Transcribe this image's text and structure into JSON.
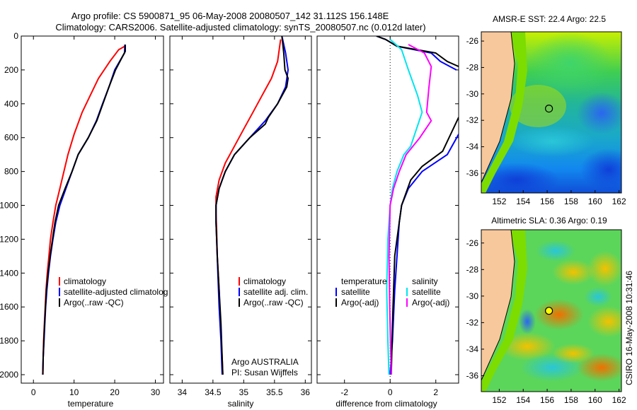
{
  "figure": {
    "title_line1": "Argo profile: CS 5900871_95 06-May-2008 20080507_142 31.112S 156.148E",
    "title_line2": "Climatology: CARS2006. Satellite-adjusted climatology: synTS_20080507.nc (0.012d later)",
    "credit": "CSIRO 16-May-2008 10:31:46"
  },
  "chart_data": [
    {
      "id": "temperature",
      "type": "line",
      "xlabel": "temperature",
      "ylabel": "",
      "xlim": [
        -3,
        32
      ],
      "ylim": [
        2050,
        0
      ],
      "xticks": [
        0,
        10,
        20,
        30
      ],
      "yticks": [
        0,
        200,
        400,
        600,
        800,
        1000,
        1200,
        1400,
        1600,
        1800,
        2000
      ],
      "legend": {
        "location": "lower-right",
        "entries": [
          "climatology",
          "satellite-adjusted climatolog",
          "Argo(..raw -QC)"
        ]
      },
      "series": [
        {
          "name": "climatology",
          "color": "#ff0000",
          "points": [
            [
              22.5,
              60
            ],
            [
              21,
              80
            ],
            [
              18.8,
              150
            ],
            [
              16,
              250
            ],
            [
              14,
              350
            ],
            [
              12,
              450
            ],
            [
              10,
              580
            ],
            [
              8.5,
              700
            ],
            [
              7.5,
              800
            ],
            [
              6.5,
              900
            ],
            [
              5.5,
              1000
            ],
            [
              4.8,
              1100
            ],
            [
              4.2,
              1200
            ],
            [
              3.8,
              1300
            ],
            [
              3.4,
              1400
            ],
            [
              3.1,
              1500
            ],
            [
              2.9,
              1600
            ],
            [
              2.7,
              1700
            ],
            [
              2.5,
              1800
            ],
            [
              2.4,
              1900
            ],
            [
              2.35,
              2000
            ]
          ]
        },
        {
          "name": "satellite-adjusted climatolog",
          "color": "#0000ff",
          "points": [
            [
              22.5,
              50
            ],
            [
              22.4,
              100
            ],
            [
              21.2,
              150
            ],
            [
              20,
              200
            ],
            [
              18.6,
              300
            ],
            [
              17,
              400
            ],
            [
              15.5,
              500
            ],
            [
              13.5,
              600
            ],
            [
              11,
              700
            ],
            [
              9.5,
              800
            ],
            [
              8,
              900
            ],
            [
              6.5,
              1000
            ],
            [
              5.5,
              1100
            ],
            [
              4.8,
              1200
            ],
            [
              4.2,
              1300
            ],
            [
              3.7,
              1400
            ],
            [
              3.3,
              1500
            ],
            [
              3.0,
              1600
            ],
            [
              2.8,
              1700
            ],
            [
              2.6,
              1800
            ],
            [
              2.4,
              1900
            ],
            [
              2.3,
              2000
            ]
          ]
        },
        {
          "name": "Argo(..raw -QC)",
          "color": "#000000",
          "points": [
            [
              22.6,
              50
            ],
            [
              22.6,
              90
            ],
            [
              21.5,
              140
            ],
            [
              20.2,
              200
            ],
            [
              18.6,
              300
            ],
            [
              17.1,
              400
            ],
            [
              15.6,
              500
            ],
            [
              13.5,
              600
            ],
            [
              11,
              700
            ],
            [
              9.5,
              800
            ],
            [
              7.8,
              900
            ],
            [
              6.2,
              1000
            ],
            [
              5.3,
              1100
            ],
            [
              4.7,
              1200
            ],
            [
              4.1,
              1300
            ],
            [
              3.6,
              1400
            ],
            [
              3.2,
              1500
            ],
            [
              2.95,
              1600
            ],
            [
              2.75,
              1700
            ],
            [
              2.55,
              1800
            ],
            [
              2.4,
              1900
            ],
            [
              2.3,
              2000
            ]
          ]
        }
      ]
    },
    {
      "id": "salinity",
      "type": "line",
      "xlabel": "salinity",
      "ylabel": "",
      "xlim": [
        33.8,
        36.1
      ],
      "ylim": [
        2050,
        0
      ],
      "xticks": [
        34,
        34.5,
        35,
        35.5,
        36
      ],
      "yticks": [
        0,
        200,
        400,
        600,
        800,
        1000,
        1200,
        1400,
        1600,
        1800,
        2000
      ],
      "legend": {
        "location": "lower-right",
        "entries": [
          "climatology",
          "satellite adj. clim.",
          "Argo(..raw -QC)"
        ]
      },
      "annotations": [
        "Argo AUSTRALIA",
        "PI: Susan Wijffels"
      ],
      "series": [
        {
          "name": "climatology",
          "color": "#ff0000",
          "points": [
            [
              35.6,
              20
            ],
            [
              35.55,
              150
            ],
            [
              35.45,
              250
            ],
            [
              35.3,
              350
            ],
            [
              35.15,
              450
            ],
            [
              35,
              550
            ],
            [
              34.85,
              650
            ],
            [
              34.7,
              750
            ],
            [
              34.6,
              850
            ],
            [
              34.55,
              950
            ],
            [
              34.55,
              1050
            ],
            [
              34.56,
              1150
            ],
            [
              34.57,
              1300
            ],
            [
              34.6,
              1500
            ],
            [
              34.62,
              1700
            ],
            [
              34.65,
              1900
            ],
            [
              34.66,
              2000
            ]
          ]
        },
        {
          "name": "satellite adj. clim.",
          "color": "#0000ff",
          "points": [
            [
              35.62,
              0
            ],
            [
              35.68,
              100
            ],
            [
              35.72,
              200
            ],
            [
              35.68,
              300
            ],
            [
              35.55,
              400
            ],
            [
              35.35,
              500
            ],
            [
              35.1,
              600
            ],
            [
              34.85,
              700
            ],
            [
              34.7,
              800
            ],
            [
              34.6,
              900
            ],
            [
              34.55,
              1000
            ],
            [
              34.55,
              1100
            ],
            [
              34.56,
              1200
            ],
            [
              34.58,
              1400
            ],
            [
              34.6,
              1600
            ],
            [
              34.63,
              1800
            ],
            [
              34.65,
              2000
            ]
          ]
        },
        {
          "name": "Argo(..raw -QC)",
          "color": "#000000",
          "points": [
            [
              35.62,
              0
            ],
            [
              35.65,
              100
            ],
            [
              35.67,
              200
            ],
            [
              35.72,
              250
            ],
            [
              35.7,
              300
            ],
            [
              35.55,
              400
            ],
            [
              35.4,
              480
            ],
            [
              35.35,
              520
            ],
            [
              35.1,
              600
            ],
            [
              34.85,
              700
            ],
            [
              34.7,
              800
            ],
            [
              34.6,
              900
            ],
            [
              34.55,
              1000
            ],
            [
              34.55,
              1100
            ],
            [
              34.57,
              1300
            ],
            [
              34.6,
              1500
            ],
            [
              34.63,
              1700
            ],
            [
              34.65,
              1900
            ],
            [
              34.66,
              2000
            ]
          ]
        }
      ]
    },
    {
      "id": "difference",
      "type": "line",
      "xlabel": "difference from climatology",
      "ylabel": "",
      "xlim": [
        -3.2,
        3.0
      ],
      "ylim": [
        2050,
        0
      ],
      "xticks": [
        -2,
        0,
        2
      ],
      "yticks": [
        0,
        200,
        400,
        600,
        800,
        1000,
        1200,
        1400,
        1600,
        1800,
        2000
      ],
      "legend": {
        "location": "lower-center",
        "entries": [
          "temperature",
          "satellite",
          "Argo(-adj)",
          "salinity",
          "satellite",
          "Argo(-adj)"
        ]
      },
      "series": [
        {
          "name": "temperature satellite",
          "color": "#0000ff",
          "points": [
            [
              -0.6,
              0
            ],
            [
              -0.2,
              20
            ],
            [
              0.3,
              60
            ],
            [
              1.8,
              100
            ],
            [
              2.2,
              150
            ],
            [
              2.9,
              200
            ]
          ]
        },
        {
          "name": "temperature satellite (deep)",
          "color": "#0000ff",
          "points": [
            [
              3.0,
              580
            ],
            [
              2.5,
              700
            ],
            [
              1.4,
              800
            ],
            [
              0.8,
              900
            ],
            [
              0.5,
              1000
            ],
            [
              0.4,
              1100
            ],
            [
              0.3,
              1300
            ],
            [
              0.2,
              1500
            ],
            [
              0.1,
              1800
            ],
            [
              0,
              2000
            ]
          ]
        },
        {
          "name": "temperature Argo(-adj)",
          "color": "#000000",
          "points": [
            [
              -0.6,
              0
            ],
            [
              -0.2,
              20
            ],
            [
              0.3,
              60
            ],
            [
              2.0,
              100
            ],
            [
              2.5,
              150
            ],
            [
              3.0,
              180
            ]
          ]
        },
        {
          "name": "temperature Argo(-adj) (deep)",
          "color": "#000000",
          "points": [
            [
              3.0,
              480
            ],
            [
              2.3,
              680
            ],
            [
              1.4,
              770
            ],
            [
              0.9,
              850
            ],
            [
              0.5,
              1000
            ],
            [
              0.4,
              1100
            ],
            [
              0.2,
              1300
            ],
            [
              0.1,
              1700
            ],
            [
              0.05,
              2000
            ]
          ]
        },
        {
          "name": "salinity satellite",
          "color": "#00e5ee",
          "points": [
            [
              0,
              20
            ],
            [
              0.5,
              80
            ],
            [
              0.8,
              200
            ],
            [
              1.2,
              350
            ],
            [
              1.4,
              450
            ],
            [
              0.9,
              650
            ],
            [
              0.6,
              700
            ],
            [
              0.3,
              800
            ],
            [
              0.1,
              900
            ],
            [
              0,
              1000
            ],
            [
              -0.1,
              1200
            ],
            [
              -0.15,
              1500
            ],
            [
              -0.1,
              1800
            ],
            [
              -0.05,
              2000
            ]
          ]
        },
        {
          "name": "salinity Argo(-adj)",
          "color": "#ff00ff",
          "points": [
            [
              0.8,
              50
            ],
            [
              1.5,
              100
            ],
            [
              1.8,
              180
            ],
            [
              1.7,
              300
            ],
            [
              1.6,
              450
            ],
            [
              1.8,
              500
            ],
            [
              1.3,
              600
            ],
            [
              0.7,
              700
            ],
            [
              0.4,
              800
            ],
            [
              0.15,
              900
            ],
            [
              0,
              1000
            ],
            [
              -0.05,
              1300
            ],
            [
              -0.02,
              1600
            ],
            [
              0.05,
              2000
            ]
          ]
        }
      ]
    },
    {
      "id": "sst-map",
      "type": "heatmap",
      "title": "AMSR-E SST: 22.4 Argo: 22.5",
      "xlim": [
        150.5,
        162.2
      ],
      "ylim": [
        -37.5,
        -25.3
      ],
      "xticks": [
        152,
        154,
        156,
        158,
        160,
        162
      ],
      "yticks": [
        -26,
        -28,
        -30,
        -32,
        -34,
        -36
      ],
      "argo_position": {
        "lon": 156.148,
        "lat": -31.112
      }
    },
    {
      "id": "sla-map",
      "type": "heatmap",
      "title": "Altimetric SLA: 0.36 Argo: 0.19",
      "xlim": [
        150.5,
        162.2
      ],
      "ylim": [
        -37.2,
        -25.0
      ],
      "xticks": [
        152,
        154,
        156,
        158,
        160,
        162
      ],
      "yticks": [
        -26,
        -28,
        -30,
        -32,
        -34,
        -36
      ],
      "argo_position": {
        "lon": 156.148,
        "lat": -31.112
      }
    }
  ],
  "colors": {
    "land": "#f7c89b",
    "coastline": "#000000",
    "shelf": "#7ddc00"
  }
}
